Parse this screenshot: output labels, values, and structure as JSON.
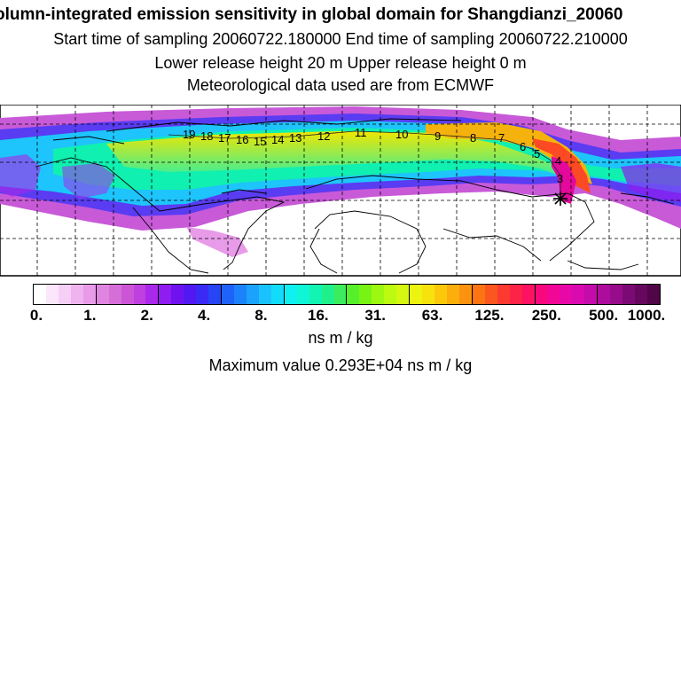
{
  "header": {
    "title": "olumn-integrated emission sensitivity in global domain for Shangdianzi_20060",
    "sampling_line": "Start time of sampling 20060722.180000     End time of sampling 20060722.210000",
    "release_line": "Lower release height   20 m          Upper release height    0 m",
    "met_line": "Meteorological data used are from ECMWF"
  },
  "map": {
    "contour_labels": [
      "19",
      "18",
      "17",
      "16",
      "15",
      "14",
      "13",
      "12",
      "11",
      "10",
      "9",
      "8",
      "7",
      "6",
      "5",
      "4",
      "3"
    ],
    "release_site": "Shangdianzi"
  },
  "colorbar": {
    "tick_labels": [
      "0.",
      "1.",
      "2.",
      "4.",
      "8.",
      "16.",
      "31.",
      "63.",
      "125.",
      "250.",
      "500.",
      "1000."
    ],
    "colors": [
      "#ffffff",
      "#fbe6fb",
      "#f6cff6",
      "#efb3ef",
      "#e79be8",
      "#df85df",
      "#d66ed9",
      "#cc55d6",
      "#bf3fe0",
      "#aa28ea",
      "#8f1cf0",
      "#6f12f0",
      "#5218f4",
      "#3a2af5",
      "#2844f7",
      "#1f62fa",
      "#1c82fb",
      "#1aa2fc",
      "#1ac2fd",
      "#12dcfb",
      "#10f0f0",
      "#0ff6d6",
      "#12f4b2",
      "#20f08c",
      "#3bec5c",
      "#55f02a",
      "#78f414",
      "#9cf810",
      "#bcfa10",
      "#d6f810",
      "#ecf410",
      "#f8e20e",
      "#fcc80c",
      "#fcae0c",
      "#fc920e",
      "#fc7414",
      "#fc5620",
      "#fc3a30",
      "#fc2248",
      "#fc1262",
      "#f8087c",
      "#f20696",
      "#e808a8",
      "#d80ab0",
      "#c40caa",
      "#ae0c9c",
      "#960c8a",
      "#7c0a74",
      "#66085e",
      "#500648"
    ]
  },
  "units": "ns m / kg",
  "max_value": "Maximum value  0.293E+04 ns m / kg"
}
